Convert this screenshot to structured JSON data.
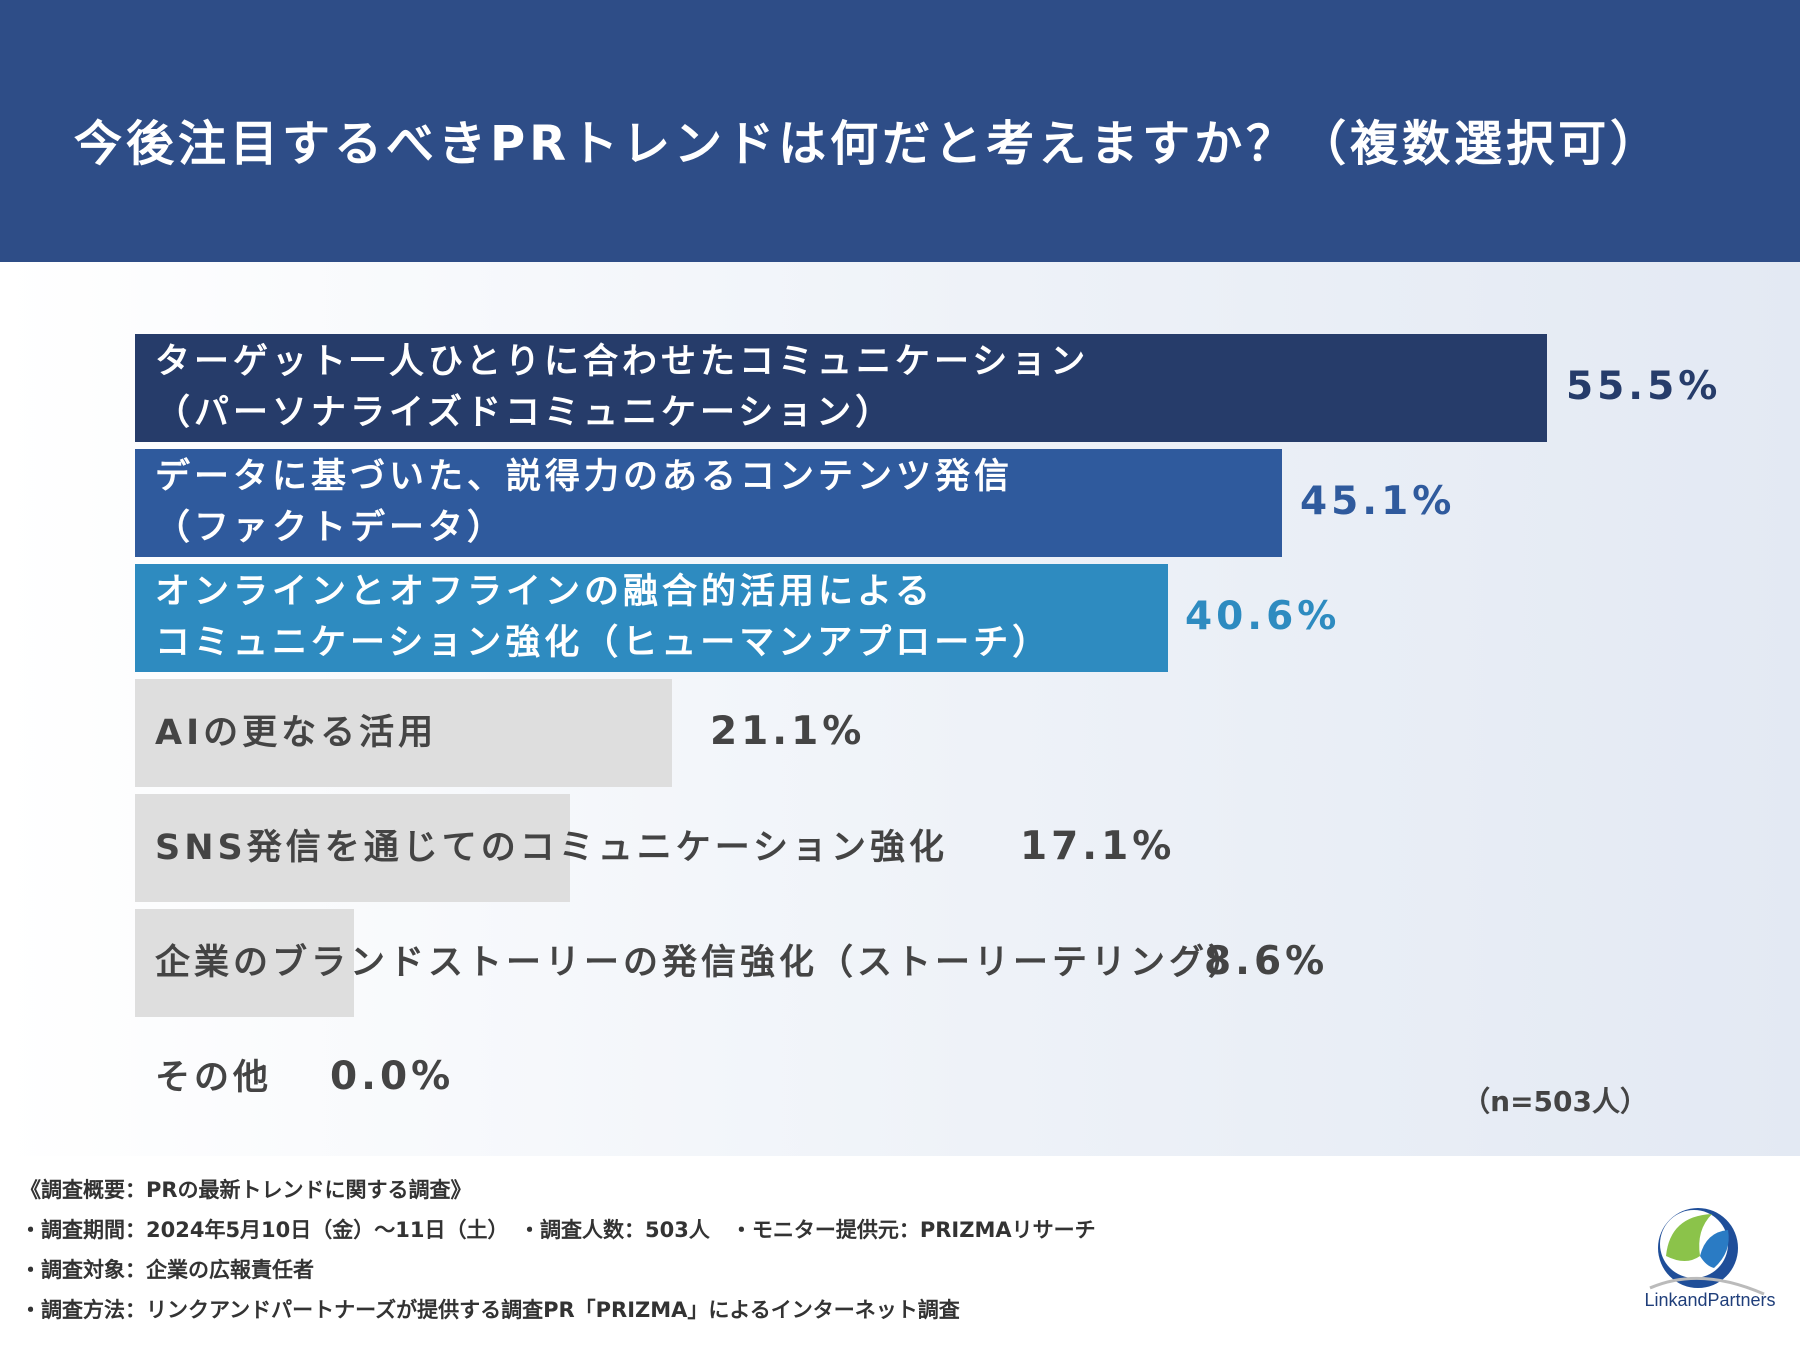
{
  "header": {
    "title": "今後注目するべきPRトレンドは何だと考えますか？（複数選択可）"
  },
  "colors": {
    "header_bg": "#2e4d87",
    "bar_dark": "#263c6a",
    "bar_mid": "#2f5a9d",
    "bar_light": "#2e8bc0",
    "bar_gray": "#dedede",
    "text_gray": "#444444"
  },
  "chart_data": {
    "type": "bar",
    "orientation": "horizontal",
    "categories": [
      "ターゲット一人ひとりに合わせたコミュニケーション\n（パーソナライズドコミュニケーション）",
      "データに基づいた、説得力のあるコンテンツ発信\n（ファクトデータ）",
      "オンラインとオフラインの融合的活用による\nコミュニケーション強化（ヒューマンアプローチ）",
      "AIの更なる活用",
      "SNS発信を通じてのコミュニケーション強化",
      "企業のブランドストーリーの発信強化（ストーリーテリング）",
      "その他"
    ],
    "values": [
      55.5,
      45.1,
      40.6,
      21.1,
      17.1,
      8.6,
      0.0
    ],
    "value_labels": [
      "55.5%",
      "45.1%",
      "40.6%",
      "21.1%",
      "17.1%",
      "8.6%",
      "0.0%"
    ],
    "xlim": [
      0,
      100
    ],
    "grid": false,
    "legend": "none"
  },
  "sample_size": "（n=503人）",
  "footer": {
    "lines": [
      "《調査概要：PRの最新トレンドに関する調査》",
      "・調査期間：2024年5月10日（金）〜11日（土）　・調査人数：503人　・モニター提供元：PRIZMAリサーチ",
      "・調査対象：企業の広報責任者",
      "・調査方法：リンクアンドパートナーズが提供する調査PR「PRIZMA」によるインターネット調査"
    ]
  },
  "logo": {
    "text": "LinkandPartners"
  }
}
